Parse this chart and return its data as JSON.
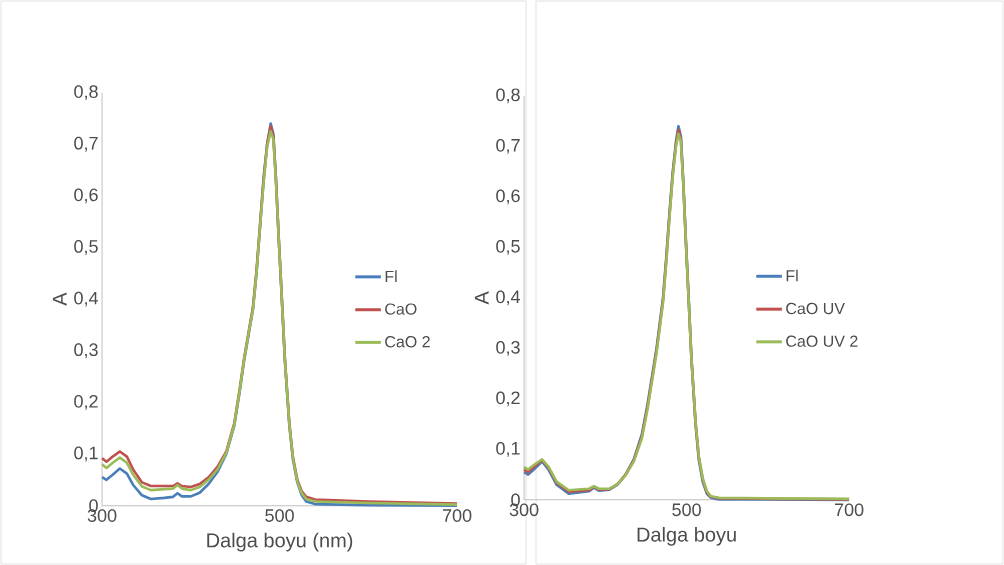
{
  "chart_data": [
    {
      "type": "line",
      "xlabel": "Dalga boyu (nm)",
      "ylabel": "A",
      "xlim": [
        300,
        700
      ],
      "ylim": [
        0,
        0.8
      ],
      "xticks": [
        300,
        500,
        700
      ],
      "yticks": [
        0,
        {
          "value": 0.1,
          "label": "0,1"
        },
        {
          "value": 0.2,
          "label": "0,2"
        },
        {
          "value": 0.3,
          "label": "0,3"
        },
        {
          "value": 0.4,
          "label": "0,4"
        },
        {
          "value": 0.5,
          "label": "0,5"
        },
        {
          "value": 0.6,
          "label": "0,6"
        },
        {
          "value": 0.7,
          "label": "0,7"
        },
        {
          "value": 0.8,
          "label": "0,8"
        }
      ],
      "legend": "right",
      "x": [
        300,
        305,
        312,
        320,
        328,
        335,
        345,
        355,
        370,
        380,
        385,
        390,
        400,
        410,
        420,
        430,
        440,
        449,
        455,
        460,
        466,
        470,
        474,
        478,
        482,
        486,
        490,
        493,
        496,
        499,
        502,
        506,
        511,
        515,
        520,
        525,
        530,
        540,
        600,
        700
      ],
      "series": [
        {
          "name": "Fl",
          "color": "#4a7ebb",
          "values": [
            0.055,
            0.05,
            0.06,
            0.072,
            0.062,
            0.04,
            0.02,
            0.013,
            0.015,
            0.017,
            0.024,
            0.018,
            0.018,
            0.025,
            0.042,
            0.065,
            0.1,
            0.155,
            0.22,
            0.28,
            0.34,
            0.38,
            0.45,
            0.54,
            0.63,
            0.7,
            0.74,
            0.72,
            0.63,
            0.52,
            0.42,
            0.28,
            0.155,
            0.09,
            0.045,
            0.02,
            0.008,
            0.003,
            0.001,
            0
          ]
        },
        {
          "name": "CaO",
          "color": "#c0504d",
          "values": [
            0.092,
            0.085,
            0.095,
            0.105,
            0.095,
            0.07,
            0.045,
            0.038,
            0.038,
            0.038,
            0.043,
            0.038,
            0.036,
            0.042,
            0.055,
            0.075,
            0.105,
            0.16,
            0.225,
            0.285,
            0.345,
            0.385,
            0.455,
            0.545,
            0.635,
            0.7,
            0.735,
            0.715,
            0.63,
            0.52,
            0.42,
            0.285,
            0.16,
            0.095,
            0.05,
            0.028,
            0.017,
            0.012,
            0.008,
            0.004
          ]
        },
        {
          "name": "CaO 2",
          "color": "#9bbb59",
          "values": [
            0.08,
            0.073,
            0.083,
            0.093,
            0.083,
            0.06,
            0.037,
            0.03,
            0.032,
            0.033,
            0.04,
            0.033,
            0.03,
            0.036,
            0.05,
            0.07,
            0.102,
            0.157,
            0.222,
            0.282,
            0.342,
            0.38,
            0.45,
            0.54,
            0.625,
            0.695,
            0.725,
            0.71,
            0.625,
            0.52,
            0.42,
            0.283,
            0.158,
            0.093,
            0.047,
            0.024,
            0.013,
            0.008,
            0.005,
            0.002
          ]
        }
      ]
    },
    {
      "type": "line",
      "xlabel": "Dalga boyu",
      "ylabel": "A",
      "xlim": [
        300,
        700
      ],
      "ylim": [
        0,
        0.8
      ],
      "xticks": [
        300,
        500,
        700
      ],
      "yticks": [
        0,
        {
          "value": 0.1,
          "label": "0,1"
        },
        {
          "value": 0.2,
          "label": "0,2"
        },
        {
          "value": 0.3,
          "label": "0,3"
        },
        {
          "value": 0.4,
          "label": "0,4"
        },
        {
          "value": 0.5,
          "label": "0,5"
        },
        {
          "value": 0.6,
          "label": "0,6"
        },
        {
          "value": 0.7,
          "label": "0,7"
        },
        {
          "value": 0.8,
          "label": "0,8"
        }
      ],
      "legend": "right",
      "x": [
        300,
        305,
        312,
        322,
        330,
        340,
        355,
        370,
        380,
        386,
        392,
        405,
        415,
        425,
        435,
        445,
        452,
        458,
        463,
        467,
        471,
        475,
        479,
        483,
        487,
        490,
        493,
        496,
        499,
        502,
        506,
        511,
        515,
        520,
        525,
        530,
        540,
        600,
        700
      ],
      "series": [
        {
          "name": "Fl",
          "color": "#4a7ebb",
          "values": [
            0.055,
            0.05,
            0.06,
            0.076,
            0.06,
            0.03,
            0.012,
            0.015,
            0.017,
            0.024,
            0.018,
            0.02,
            0.03,
            0.05,
            0.08,
            0.13,
            0.19,
            0.25,
            0.3,
            0.35,
            0.4,
            0.48,
            0.57,
            0.65,
            0.71,
            0.74,
            0.72,
            0.63,
            0.52,
            0.42,
            0.28,
            0.15,
            0.08,
            0.035,
            0.012,
            0.004,
            0.001,
            0.001,
            0
          ]
        },
        {
          "name": "CaO UV",
          "color": "#c0504d",
          "values": [
            0.06,
            0.055,
            0.065,
            0.079,
            0.064,
            0.034,
            0.016,
            0.018,
            0.019,
            0.026,
            0.02,
            0.021,
            0.031,
            0.05,
            0.078,
            0.125,
            0.185,
            0.245,
            0.295,
            0.345,
            0.395,
            0.475,
            0.565,
            0.645,
            0.705,
            0.733,
            0.715,
            0.625,
            0.515,
            0.415,
            0.28,
            0.155,
            0.085,
            0.04,
            0.015,
            0.006,
            0.003,
            0.002,
            0.001
          ]
        },
        {
          "name": "CaO UV 2",
          "color": "#9bbb59",
          "values": [
            0.065,
            0.06,
            0.069,
            0.08,
            0.066,
            0.036,
            0.019,
            0.021,
            0.022,
            0.027,
            0.022,
            0.022,
            0.031,
            0.049,
            0.076,
            0.122,
            0.18,
            0.24,
            0.29,
            0.34,
            0.39,
            0.47,
            0.56,
            0.64,
            0.7,
            0.725,
            0.71,
            0.625,
            0.515,
            0.415,
            0.28,
            0.156,
            0.087,
            0.042,
            0.017,
            0.007,
            0.004,
            0.003,
            0.002
          ]
        }
      ]
    }
  ]
}
